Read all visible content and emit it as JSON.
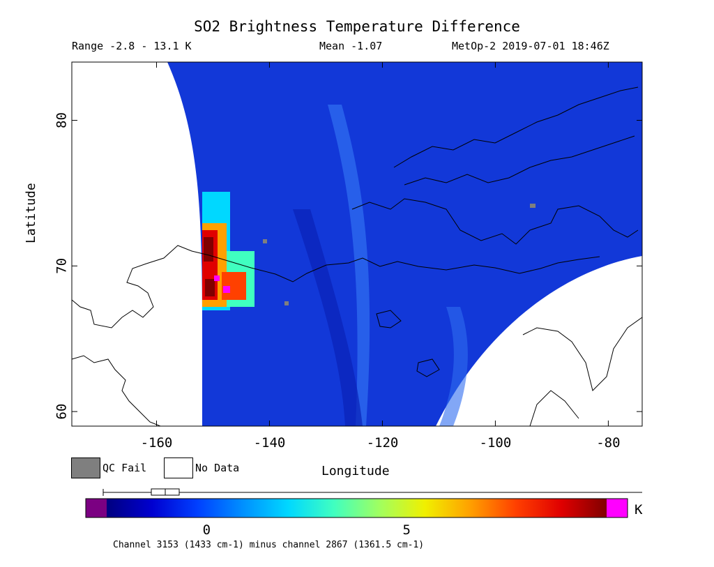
{
  "title": "SO2 Brightness Temperature Difference",
  "range": "Range -2.8 - 13.1 K",
  "mean": "Mean -1.07",
  "satellite": "MetOp-2 2019-07-01 18:46Z",
  "x_axis": {
    "label": "Longitude",
    "ticks": [
      "-160",
      "-140",
      "-120",
      "-100",
      "-80"
    ]
  },
  "y_axis": {
    "label": "Latitude",
    "ticks": [
      "60",
      "70",
      "80"
    ]
  },
  "map_extent": {
    "lon": [
      -175,
      -74
    ],
    "lat": [
      59,
      84
    ]
  },
  "legend": {
    "qc_fail": "QC Fail",
    "no_data": "No Data",
    "qc_color": "#7f7f7f"
  },
  "colorbar": {
    "unit": "K",
    "ticks": [
      "0",
      "5"
    ],
    "range": [
      -2.5,
      10
    ],
    "under_color": "#7b0082",
    "over_color": "#ff00ff",
    "colors": [
      "#000080",
      "#0000d0",
      "#0040ff",
      "#0090ff",
      "#00d8ff",
      "#40ffc0",
      "#a0ff60",
      "#f0f000",
      "#ffa000",
      "#ff4000",
      "#e00000",
      "#800000"
    ]
  },
  "footnote": "Channel 3153 (1433 cm-1) minus channel 2867 (1361.5 cm-1)",
  "map_colors": {
    "background": "#1238d8",
    "plume_core": "#8b0000",
    "plume_edge": "#00e0ff"
  }
}
